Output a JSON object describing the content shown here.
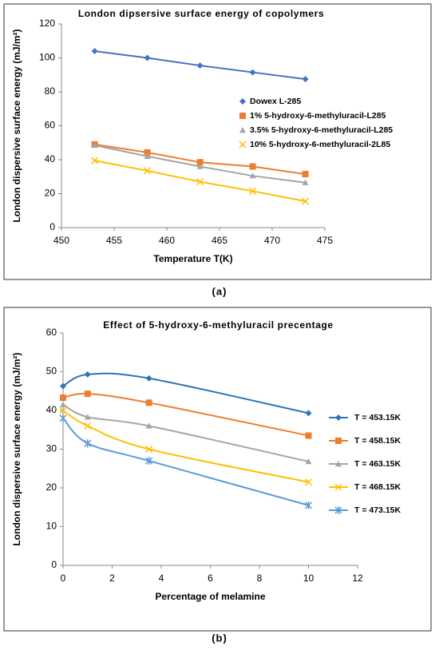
{
  "chart_data": [
    {
      "type": "line",
      "title": "London dipsersive surface energy of copolymers",
      "x_label": "Temperature T(K)",
      "y_label": "London dispersive surface energy (mJ/m²)",
      "panel_label": "(a)",
      "smooth": false,
      "legend_position": "center-right",
      "xlim": [
        450,
        475
      ],
      "xticks": [
        450,
        455,
        460,
        465,
        470,
        475
      ],
      "ylim": [
        0,
        120
      ],
      "yticks": [
        0,
        20,
        40,
        60,
        80,
        100,
        120
      ],
      "series": [
        {
          "name": "Dowex L-285",
          "color": "#4472c4",
          "marker": "diamond",
          "x": [
            453.15,
            458.15,
            463.15,
            468.15,
            473.15
          ],
          "values": [
            104,
            100,
            95.5,
            91.5,
            87.5
          ]
        },
        {
          "name": "1% 5-hydroxy-6-methyluracil-L285",
          "color": "#ed7d31",
          "marker": "square",
          "x": [
            453.15,
            458.15,
            463.15,
            468.15,
            473.15
          ],
          "values": [
            49,
            44.3,
            38.5,
            36,
            31.5
          ]
        },
        {
          "name": "3.5% 5-hydroxy-6-methyluracil-L285",
          "color": "#a5a5a5",
          "marker": "triangle",
          "x": [
            453.15,
            458.15,
            463.15,
            468.15,
            473.15
          ],
          "values": [
            48.5,
            42,
            36,
            30.5,
            26.5
          ]
        },
        {
          "name": "10% 5-hydroxy-6-methyluracil-2L85",
          "color": "#ffc000",
          "marker": "x",
          "x": [
            453.15,
            458.15,
            463.15,
            468.15,
            473.15
          ],
          "values": [
            39.5,
            33.5,
            27,
            21.5,
            15.5
          ]
        }
      ]
    },
    {
      "type": "line",
      "title": "Effect of 5-hydroxy-6-methyluracil precentage",
      "x_label": "Percentage of melamine",
      "y_label": "London dispersive surface energy (mJ/m²)",
      "panel_label": "(b)",
      "smooth": true,
      "legend_position": "right",
      "xlim": [
        0,
        12
      ],
      "xticks": [
        0,
        2,
        4,
        6,
        8,
        10,
        12
      ],
      "ylim": [
        0,
        60
      ],
      "yticks": [
        0,
        10,
        20,
        30,
        40,
        50,
        60
      ],
      "series": [
        {
          "name": "T = 453.15K",
          "color": "#2e75b6",
          "marker": "diamond",
          "x": [
            0,
            1,
            3.5,
            10
          ],
          "values": [
            46.3,
            49.3,
            48.3,
            39.3
          ]
        },
        {
          "name": "T = 458.15K",
          "color": "#ed7d31",
          "marker": "square",
          "x": [
            0,
            1,
            3.5,
            10
          ],
          "values": [
            43.3,
            44.3,
            42,
            33.5
          ]
        },
        {
          "name": "T = 463.15K",
          "color": "#a5a5a5",
          "marker": "triangle",
          "x": [
            0,
            1,
            3.5,
            10
          ],
          "values": [
            41.5,
            38.3,
            36,
            26.8
          ]
        },
        {
          "name": "T = 468.15K",
          "color": "#ffc000",
          "marker": "x",
          "x": [
            0,
            1,
            3.5,
            10
          ],
          "values": [
            40,
            36,
            30,
            21.5
          ]
        },
        {
          "name": "T = 473.15K",
          "color": "#5b9bd5",
          "marker": "star",
          "x": [
            0,
            1,
            3.5,
            10
          ],
          "values": [
            38,
            31.5,
            27,
            15.5
          ]
        }
      ]
    }
  ]
}
